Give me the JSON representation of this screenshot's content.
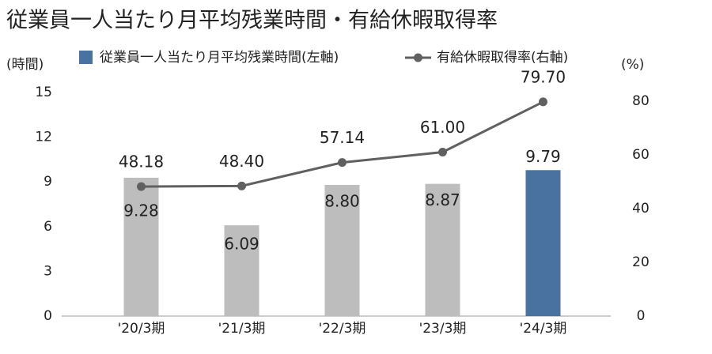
{
  "chart_data": {
    "type": "bar-line",
    "title": "従業員一人当たり月平均残業時間・有給休暇取得率",
    "y_axis_label": "(時間)",
    "y2_axis_label": "(%)",
    "categories": [
      "'20/3期",
      "'21/3期",
      "'22/3期",
      "'23/3期",
      "'24/3期"
    ],
    "series": [
      {
        "name": "従業員一人当たり月平均残業時間(左軸)",
        "type": "bar",
        "color": "#4a72a0",
        "colors": [
          "#bdbdbd",
          "#bdbdbd",
          "#bdbdbd",
          "#bdbdbd",
          "#4a72a0"
        ],
        "values": [
          9.28,
          6.09,
          8.8,
          8.87,
          9.79
        ],
        "value_labels": [
          "9.28",
          "6.09",
          "8.80",
          "8.87",
          "9.79"
        ]
      },
      {
        "name": "有給休暇取得率(右軸)",
        "type": "line",
        "axis": "y2",
        "color": "#606060",
        "values": [
          48.18,
          48.4,
          57.14,
          61,
          79.7
        ],
        "value_labels": [
          "48.18",
          "48.40",
          "57.14",
          "61.00",
          "79.70"
        ]
      }
    ],
    "ylim": [
      0,
      15
    ],
    "yticks": [
      0,
      3,
      6,
      9,
      12,
      15
    ],
    "y2lim": [
      0,
      83.2
    ],
    "y2ticks": [
      0,
      20,
      40,
      60,
      80
    ]
  }
}
